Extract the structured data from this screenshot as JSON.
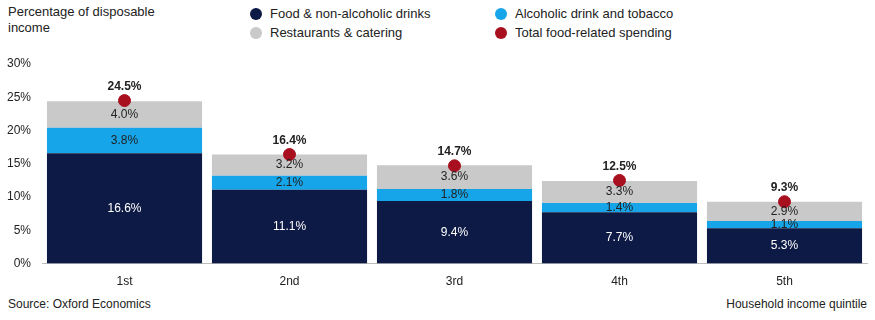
{
  "chart_data": {
    "type": "bar",
    "y_label": "Percentage of disposable income",
    "x_label": "Household income quintile",
    "source": "Source: Oxford Economics",
    "categories": [
      "1st",
      "2nd",
      "3rd",
      "4th",
      "5th"
    ],
    "series": [
      {
        "name": "Food & non-alcoholic drinks",
        "color": "#0d1a45",
        "values": [
          16.6,
          11.1,
          9.4,
          7.7,
          5.3
        ],
        "value_labels": [
          "16.6%",
          "11.1%",
          "9.4%",
          "7.7%",
          "5.3%"
        ]
      },
      {
        "name": "Alcoholic drink and tobacco",
        "color": "#16a5e9",
        "values": [
          3.8,
          2.1,
          1.8,
          1.4,
          1.1
        ],
        "value_labels": [
          "3.8%",
          "2.1%",
          "1.8%",
          "1.4%",
          "1.1%"
        ]
      },
      {
        "name": "Restaurants & catering",
        "color": "#c9c9c9",
        "values": [
          4.0,
          3.2,
          3.6,
          3.3,
          2.9
        ],
        "value_labels": [
          "4.0%",
          "3.2%",
          "3.6%",
          "3.3%",
          "2.9%"
        ]
      },
      {
        "name": "Total food-related spending",
        "color": "#a8101f",
        "type": "scatter",
        "marker": "circle",
        "values": [
          24.5,
          16.4,
          14.7,
          12.5,
          9.3
        ],
        "value_labels": [
          "24.5%",
          "16.4%",
          "14.7%",
          "12.5%",
          "9.3%"
        ]
      }
    ],
    "ylim": [
      0,
      30
    ],
    "yticks": [
      {
        "value": 0,
        "label": "0%"
      },
      {
        "value": 5,
        "label": "5%"
      },
      {
        "value": 10,
        "label": "10%"
      },
      {
        "value": 15,
        "label": "15%"
      },
      {
        "value": 20,
        "label": "20%"
      },
      {
        "value": 25,
        "label": "25%"
      },
      {
        "value": 30,
        "label": "30%"
      }
    ],
    "stacked": true,
    "data_labels": true,
    "grid": false,
    "legend": "top"
  }
}
